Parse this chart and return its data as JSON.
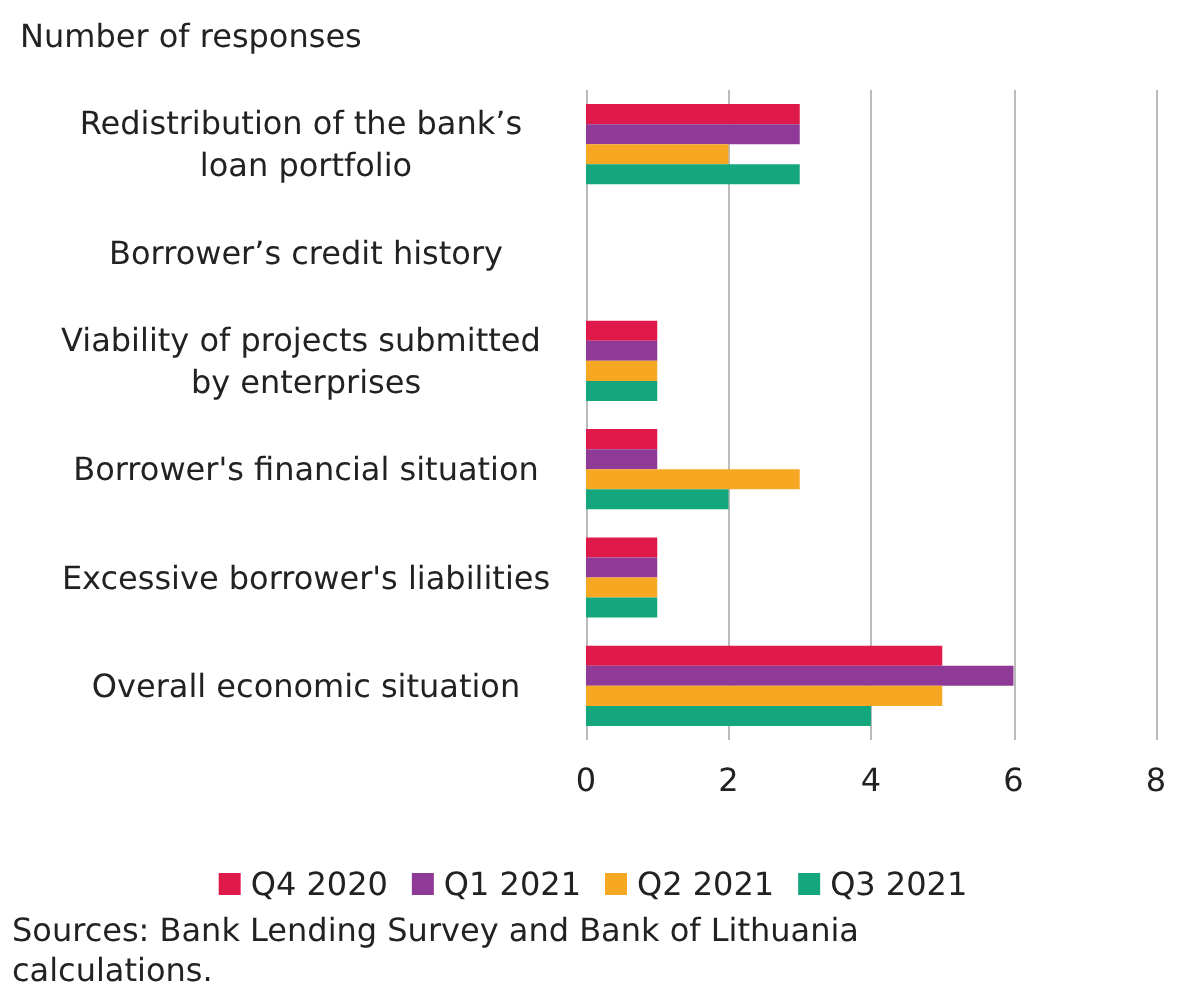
{
  "chart_data": {
    "type": "bar",
    "orientation": "horizontal",
    "xlabel": "Number of responses",
    "categories": [
      "Redistribution of the bank’s loan portfolio",
      "Borrower’s credit history",
      "Viability of projects submitted by enterprises",
      "Borrower's financial situation",
      "Excessive borrower's liabilities",
      "Overall economic situation"
    ],
    "series": [
      {
        "name": "Q4 2020",
        "color": "#e0194b",
        "values": [
          3,
          0,
          1,
          1,
          1,
          5
        ]
      },
      {
        "name": "Q1 2021",
        "color": "#8e3a96",
        "values": [
          3,
          0,
          1,
          1,
          1,
          6
        ]
      },
      {
        "name": "Q2 2021",
        "color": "#f7a823",
        "values": [
          2,
          0,
          1,
          3,
          1,
          5
        ]
      },
      {
        "name": "Q3 2021",
        "color": "#14a77e",
        "values": [
          3,
          0,
          1,
          2,
          1,
          4
        ]
      }
    ],
    "xlim": [
      0,
      8
    ],
    "xticks": [
      0,
      2,
      4,
      6,
      8
    ],
    "grid": "x",
    "legend": "bottom",
    "annotations": [
      "Sources: Bank Lending Survey and Bank of Lithuania calculations."
    ]
  }
}
